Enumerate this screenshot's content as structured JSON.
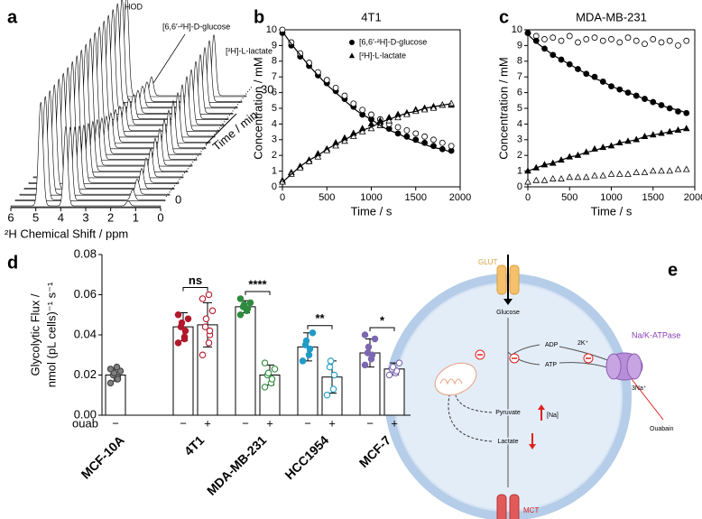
{
  "chart_data": [
    {
      "panel": "a",
      "type": "spectra",
      "xlabel": "²H Chemical Shift / ppm",
      "xlim": [
        6,
        0
      ],
      "xticks": [
        6,
        5,
        4,
        3,
        2,
        1,
        0
      ],
      "zlabel": "Time / min",
      "zlim": [
        0,
        30
      ],
      "zticks": [
        0,
        30
      ],
      "peaks": [
        {
          "label": "HOD",
          "ppm": 4.8
        },
        {
          "label": "[6,6′-²H]-D-glucose",
          "ppm": 3.8
        },
        {
          "label": "[²H]-L-lactate",
          "ppm": 1.3
        }
      ]
    },
    {
      "panel": "b",
      "type": "scatter",
      "title": "4T1",
      "xlabel": "Time / s",
      "ylabel": "Concentration / mM",
      "xlim": [
        0,
        2000
      ],
      "xticks": [
        0,
        500,
        1000,
        1500,
        2000
      ],
      "ylim": [
        0,
        10
      ],
      "yticks": [
        0,
        1,
        2,
        3,
        4,
        5,
        6,
        7,
        8,
        9,
        10
      ],
      "legend": "upper right",
      "x": [
        0,
        100,
        200,
        300,
        400,
        500,
        600,
        700,
        800,
        900,
        1000,
        1100,
        1200,
        1300,
        1400,
        1500,
        1600,
        1700,
        1800,
        1900
      ],
      "series": [
        {
          "name": "[6,6′-²H]-D-glucose",
          "marker": "circle",
          "color": "#000000",
          "filled": true,
          "values": [
            9.8,
            9.0,
            8.3,
            7.7,
            7.1,
            6.6,
            6.1,
            5.6,
            5.1,
            4.6,
            4.3,
            4.0,
            3.7,
            3.4,
            3.2,
            3.0,
            2.8,
            2.6,
            2.4,
            2.3
          ]
        },
        {
          "marker": "circle",
          "color": "#000000",
          "filled": false,
          "values": [
            10.0,
            9.2,
            8.5,
            7.9,
            7.3,
            6.8,
            6.3,
            5.8,
            5.3,
            4.9,
            4.6,
            4.3,
            4.0,
            3.8,
            3.6,
            3.4,
            3.2,
            3.0,
            2.8,
            2.6
          ]
        },
        {
          "name": "[²H]-L-lactate",
          "marker": "triangle",
          "color": "#000000",
          "filled": true,
          "values": [
            0.4,
            0.9,
            1.3,
            1.7,
            2.1,
            2.4,
            2.8,
            3.1,
            3.4,
            3.7,
            4.0,
            4.2,
            4.4,
            4.6,
            4.7,
            4.9,
            5.0,
            5.1,
            5.2,
            5.2
          ]
        },
        {
          "marker": "triangle",
          "color": "#000000",
          "filled": false,
          "values": [
            0.3,
            0.8,
            1.2,
            1.6,
            1.9,
            2.3,
            2.6,
            2.9,
            3.2,
            3.5,
            3.7,
            3.9,
            4.2,
            4.4,
            4.6,
            4.8,
            4.9,
            5.0,
            5.2,
            5.3
          ]
        },
        {
          "marker": "line",
          "color": "#000000",
          "values": [
            9.9,
            9.1,
            8.4,
            7.7,
            7.1,
            6.5,
            6.0,
            5.5,
            5.0,
            4.6,
            4.3,
            3.9,
            3.6,
            3.4,
            3.1,
            2.9,
            2.7,
            2.5,
            2.4,
            2.2
          ]
        },
        {
          "marker": "line",
          "color": "#000000",
          "values": [
            0.3,
            0.8,
            1.3,
            1.7,
            2.0,
            2.4,
            2.7,
            3.0,
            3.3,
            3.6,
            3.8,
            4.1,
            4.3,
            4.5,
            4.7,
            4.8,
            5.0,
            5.1,
            5.2,
            5.3
          ]
        }
      ]
    },
    {
      "panel": "c",
      "type": "scatter",
      "title": "MDA-MB-231",
      "xlabel": "Time / s",
      "ylabel": "Concentration / mM",
      "xlim": [
        0,
        2000
      ],
      "xticks": [
        0,
        500,
        1000,
        1500,
        2000
      ],
      "ylim": [
        0,
        10
      ],
      "yticks": [
        0,
        1,
        2,
        3,
        4,
        5,
        6,
        7,
        8,
        9,
        10
      ],
      "x": [
        0,
        100,
        200,
        300,
        400,
        500,
        600,
        700,
        800,
        900,
        1000,
        1100,
        1200,
        1300,
        1400,
        1500,
        1600,
        1700,
        1800,
        1900
      ],
      "series": [
        {
          "marker": "circle",
          "color": "#000000",
          "filled": false,
          "values": [
            9.8,
            9.6,
            9.4,
            9.5,
            9.3,
            9.6,
            9.2,
            9.4,
            9.5,
            9.3,
            9.4,
            9.2,
            9.5,
            9.3,
            9.1,
            9.4,
            9.2,
            9.3,
            9.0,
            9.3
          ]
        },
        {
          "marker": "circle",
          "color": "#000000",
          "filled": true,
          "values": [
            9.8,
            9.3,
            8.8,
            8.4,
            8.1,
            7.8,
            7.5,
            7.2,
            7.0,
            6.7,
            6.4,
            6.2,
            6.0,
            5.8,
            5.6,
            5.4,
            5.2,
            5.0,
            4.8,
            4.7
          ]
        },
        {
          "marker": "triangle",
          "color": "#000000",
          "filled": true,
          "values": [
            1.0,
            1.2,
            1.4,
            1.5,
            1.7,
            1.9,
            2.0,
            2.2,
            2.4,
            2.5,
            2.6,
            2.8,
            2.9,
            3.0,
            3.2,
            3.3,
            3.4,
            3.5,
            3.6,
            3.7
          ]
        },
        {
          "marker": "triangle",
          "color": "#000000",
          "filled": false,
          "values": [
            0.3,
            0.4,
            0.4,
            0.5,
            0.5,
            0.6,
            0.6,
            0.6,
            0.7,
            0.7,
            0.8,
            0.8,
            0.8,
            0.9,
            0.9,
            1.0,
            1.0,
            1.0,
            1.1,
            1.1
          ]
        },
        {
          "marker": "line",
          "color": "#000000",
          "values": [
            9.7,
            9.2,
            8.8,
            8.4,
            8.1,
            7.8,
            7.5,
            7.2,
            6.9,
            6.7,
            6.4,
            6.2,
            6.0,
            5.8,
            5.6,
            5.4,
            5.2,
            5.0,
            4.9,
            4.7
          ]
        },
        {
          "marker": "line",
          "color": "#000000",
          "values": [
            1.0,
            1.2,
            1.4,
            1.5,
            1.7,
            1.9,
            2.0,
            2.2,
            2.3,
            2.5,
            2.6,
            2.8,
            2.9,
            3.0,
            3.2,
            3.3,
            3.4,
            3.5,
            3.6,
            3.7
          ]
        }
      ]
    },
    {
      "panel": "d",
      "type": "bar",
      "ylabel": [
        "Glycolytic Flux /",
        "nmol (pL cells)⁻¹ s⁻¹"
      ],
      "treatment_label": "ouab",
      "ylim": [
        0,
        0.08
      ],
      "yticks": [
        {
          "value": 0,
          "label": "0.00"
        },
        {
          "value": 0.02,
          "label": "0.02"
        },
        {
          "value": 0.04,
          "label": "0.04"
        },
        {
          "value": 0.06,
          "label": "0.06"
        },
        {
          "value": 0.08,
          "label": "0.08"
        }
      ],
      "groups": [
        {
          "name": "MCF-10A",
          "color": "#7f7f7f",
          "bars": [
            {
              "treatment": "−",
              "value": 0.02,
              "error": 0.003,
              "points": [
                0.016,
                0.018,
                0.019,
                0.02,
                0.021,
                0.022,
                0.023,
                0.024,
                0.018
              ]
            }
          ]
        },
        {
          "name": "4T1",
          "color": "#b2182b",
          "significance": "ns",
          "bars": [
            {
              "treatment": "−",
              "value": 0.044,
              "error": 0.007,
              "points": [
                0.036,
                0.039,
                0.042,
                0.044,
                0.046,
                0.048,
                0.05,
                0.038
              ]
            },
            {
              "treatment": "+",
              "value": 0.045,
              "error": 0.011,
              "points": [
                0.03,
                0.036,
                0.04,
                0.044,
                0.048,
                0.052,
                0.058,
                0.06,
                0.042
              ]
            }
          ]
        },
        {
          "name": "MDA-MB-231",
          "color": "#2e8b3e",
          "significance": "****",
          "bars": [
            {
              "treatment": "−",
              "value": 0.054,
              "error": 0.003,
              "points": [
                0.05,
                0.052,
                0.053,
                0.054,
                0.055,
                0.056,
                0.058
              ]
            },
            {
              "treatment": "+",
              "value": 0.02,
              "error": 0.005,
              "points": [
                0.014,
                0.016,
                0.018,
                0.02,
                0.021,
                0.023,
                0.026
              ]
            }
          ]
        },
        {
          "name": "HCC1954",
          "color": "#1f9bc7",
          "significance": "**",
          "bars": [
            {
              "treatment": "−",
              "value": 0.034,
              "error": 0.007,
              "points": [
                0.027,
                0.03,
                0.033,
                0.035,
                0.037,
                0.041
              ]
            },
            {
              "treatment": "+",
              "value": 0.019,
              "error": 0.008,
              "points": [
                0.01,
                0.013,
                0.02,
                0.024,
                0.027
              ]
            }
          ]
        },
        {
          "name": "MCF-7",
          "color": "#7b68b0",
          "significance": "*",
          "bars": [
            {
              "treatment": "−",
              "value": 0.031,
              "error": 0.007,
              "points": [
                0.025,
                0.028,
                0.03,
                0.031,
                0.034,
                0.038,
                0.04
              ]
            },
            {
              "treatment": "+",
              "value": 0.023,
              "error": 0.003,
              "points": [
                0.02,
                0.021,
                0.022,
                0.023,
                0.024,
                0.026
              ]
            }
          ]
        }
      ]
    }
  ],
  "diagram": {
    "panel": "e",
    "labels": {
      "glut": "GLUT",
      "glucose": "Glucose",
      "adp": "ADP",
      "atp": "ATP",
      "k": "2K⁺",
      "na3": "3Na⁺",
      "pump": "Na/K-ATPase",
      "ouabain": "Ouabain",
      "pyruvate": "Pyruvate",
      "na": "[Na]",
      "lactate": "Lactate",
      "mct": "MCT"
    }
  }
}
